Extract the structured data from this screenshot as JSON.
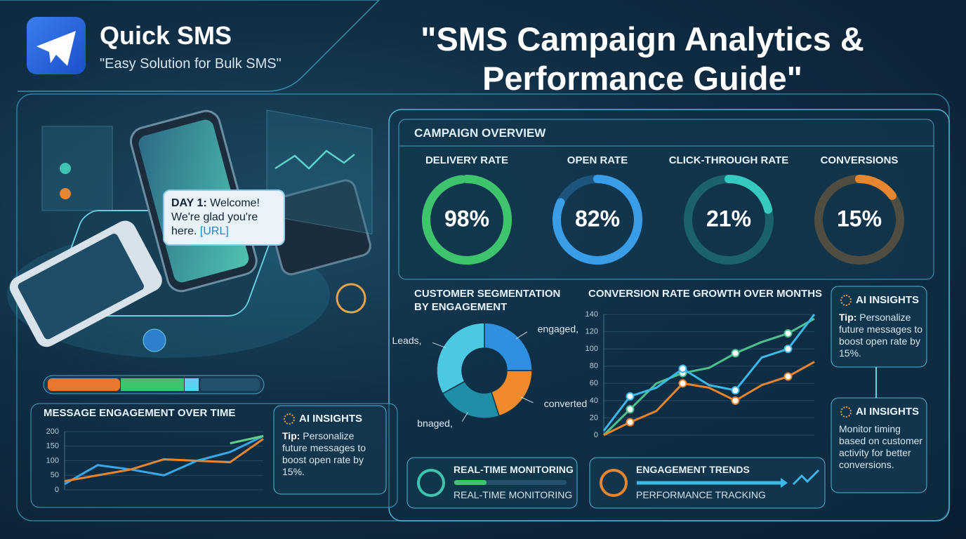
{
  "brand": {
    "name": "Quick SMS",
    "tagline": "\"Easy Solution for Bulk SMS\""
  },
  "title": "\"SMS Campaign Analytics & Performance Guide\"",
  "bubble": {
    "day": "DAY 1:",
    "text": "Welcome! We're glad you're here.",
    "link": "[URL]"
  },
  "overview_title": "CAMPAIGN OVERVIEW",
  "chart_data": [
    {
      "type": "gauge",
      "title": "DELIVERY RATE",
      "values": [
        98
      ],
      "value_labels": [
        "98%"
      ],
      "ylim": [
        0,
        100
      ],
      "color": "#3ec46d"
    },
    {
      "type": "gauge",
      "title": "OPEN RATE",
      "values": [
        82
      ],
      "value_labels": [
        "82%"
      ],
      "ylim": [
        0,
        100
      ],
      "color": "#3a9de8"
    },
    {
      "type": "gauge",
      "title": "CLICK-THROUGH RATE",
      "values": [
        21
      ],
      "value_labels": [
        "21%"
      ],
      "ylim": [
        0,
        100
      ],
      "color": "#36c9c0"
    },
    {
      "type": "gauge",
      "title": "CONVERSIONS",
      "values": [
        15
      ],
      "value_labels": [
        "15%"
      ],
      "ylim": [
        0,
        100
      ],
      "color": "#e8852f"
    },
    {
      "type": "donut",
      "title": "CUSTOMER SEGMENTATION BY ENGAGEMENT",
      "categories": [
        "engaged,",
        "converted",
        "bnaged,",
        "Leads,"
      ],
      "values": [
        25,
        20,
        22,
        33
      ],
      "colors": [
        "#2f8fe0",
        "#f08a2c",
        "#1e8fa6",
        "#4cc8e0"
      ]
    },
    {
      "type": "line",
      "title": "MESSAGE ENGAGEMENT OVER TIME",
      "categories": [
        null,
        null,
        null,
        null,
        null,
        null,
        null
      ],
      "ylim": [
        0,
        200
      ],
      "yticks": [
        0,
        50,
        100,
        150,
        200
      ],
      "series": [
        {
          "color": "#3aa8e8",
          "values": [
            20,
            85,
            70,
            50,
            100,
            130,
            185
          ]
        },
        {
          "color": "#e8852f",
          "values": [
            30,
            50,
            70,
            105,
            100,
            95,
            175
          ]
        },
        {
          "color": "#5fd08a",
          "values": [
            null,
            null,
            null,
            null,
            null,
            160,
            185
          ]
        }
      ]
    },
    {
      "type": "line",
      "title": "CONVERSION RATE GROWTH OVER MONTHS",
      "markers": true,
      "categories": [
        null,
        null,
        null,
        null,
        null,
        null,
        null,
        null,
        null
      ],
      "ylim": [
        0,
        140
      ],
      "yticks": [
        0,
        20,
        40,
        60,
        80,
        100,
        120,
        140
      ],
      "series": [
        {
          "color": "#4fc08d",
          "values": [
            0,
            30,
            60,
            72,
            78,
            95,
            108,
            118,
            135
          ]
        },
        {
          "color": "#3cb8e8",
          "values": [
            5,
            45,
            55,
            77,
            58,
            52,
            90,
            100,
            140
          ]
        },
        {
          "color": "#e8852f",
          "values": [
            0,
            15,
            28,
            60,
            55,
            40,
            58,
            68,
            85
          ]
        }
      ]
    }
  ],
  "insights": [
    {
      "title": "AI INSIGHTS",
      "tip": "Tip:",
      "text": "Personalize future messages to boost open rate by 15%."
    },
    {
      "title": "AI INSIGHTS",
      "tip": "Tip:",
      "text": "Personalize future messages to boost open rate by 15%."
    },
    {
      "title": "AI INSIGHTS",
      "text": "Monitor timing based on customer activity for better conversions."
    }
  ],
  "widgets": [
    {
      "title": "REAL-TIME MONITORING",
      "subtitle": "REAL-TIME MONITORING"
    },
    {
      "title": "ENGAGEMENT TRENDS",
      "subtitle": "PERFORMANCE TRACKING"
    }
  ]
}
